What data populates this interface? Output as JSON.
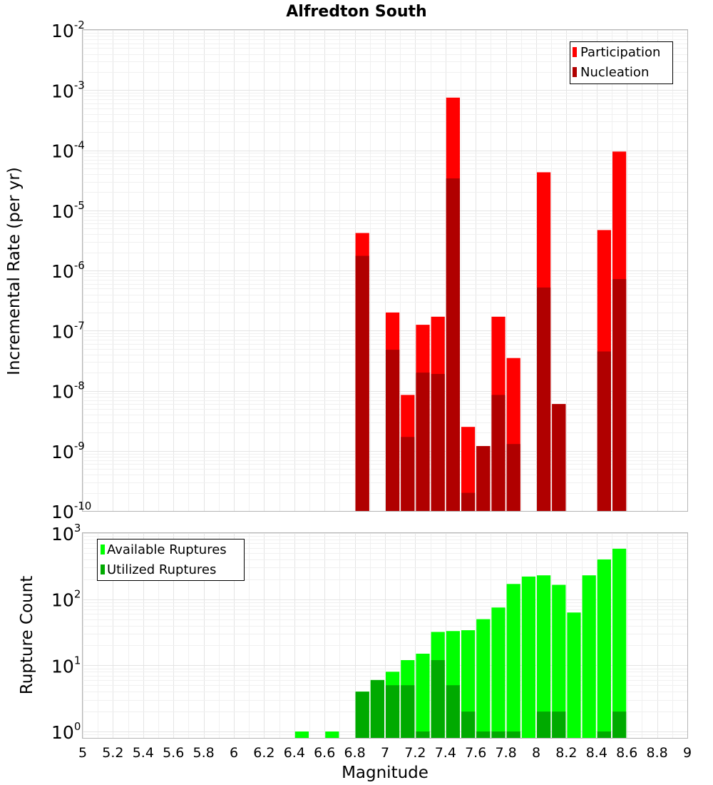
{
  "chart_data": [
    {
      "type": "bar",
      "title": "Alfredton South",
      "ylabel": "Incremental Rate (per yr)",
      "yscale": "log",
      "ylim": [
        1e-10,
        0.01
      ],
      "xlim": [
        5,
        9
      ],
      "grid": true,
      "legend": "top-right",
      "y_ticks": [
        {
          "base": "10",
          "exp": "-10"
        },
        {
          "base": "10",
          "exp": "-9"
        },
        {
          "base": "10",
          "exp": "-8"
        },
        {
          "base": "10",
          "exp": "-7"
        },
        {
          "base": "10",
          "exp": "-6"
        },
        {
          "base": "10",
          "exp": "-5"
        },
        {
          "base": "10",
          "exp": "-4"
        },
        {
          "base": "10",
          "exp": "-3"
        },
        {
          "base": "10",
          "exp": "-2"
        }
      ],
      "series": [
        {
          "name": "Participation",
          "color": "#ff0000",
          "points": [
            [
              6.85,
              4.2e-06
            ],
            [
              7.05,
              2e-07
            ],
            [
              7.15,
              8.5e-09
            ],
            [
              7.25,
              1.25e-07
            ],
            [
              7.35,
              1.7e-07
            ],
            [
              7.45,
              0.00075
            ],
            [
              7.55,
              2.5e-09
            ],
            [
              7.65,
              1.2e-09
            ],
            [
              7.75,
              1.7e-07
            ],
            [
              7.85,
              3.5e-08
            ],
            [
              8.05,
              4.3e-05
            ],
            [
              8.15,
              6e-09
            ],
            [
              8.45,
              4.7e-06
            ],
            [
              8.55,
              9.5e-05
            ]
          ]
        },
        {
          "name": "Nucleation",
          "color": "#b00000",
          "points": [
            [
              6.85,
              1.75e-06
            ],
            [
              7.05,
              4.8e-08
            ],
            [
              7.15,
              1.7e-09
            ],
            [
              7.25,
              2e-08
            ],
            [
              7.35,
              1.9e-08
            ],
            [
              7.45,
              3.4e-05
            ],
            [
              7.55,
              2e-10
            ],
            [
              7.65,
              1.2e-09
            ],
            [
              7.75,
              8.5e-09
            ],
            [
              7.85,
              1.3e-09
            ],
            [
              8.05,
              5.2e-07
            ],
            [
              8.15,
              6e-09
            ],
            [
              8.45,
              4.5e-08
            ],
            [
              8.55,
              7.2e-07
            ]
          ]
        }
      ]
    },
    {
      "type": "bar",
      "xlabel": "Magnitude",
      "ylabel": "Rupture Count",
      "yscale": "log",
      "ylim": [
        0.8,
        1000
      ],
      "xlim": [
        5,
        9
      ],
      "grid": true,
      "legend": "top-left",
      "x_ticks": [
        "5",
        "5.2",
        "5.4",
        "5.6",
        "5.8",
        "6",
        "6.2",
        "6.4",
        "6.6",
        "6.8",
        "7",
        "7.2",
        "7.4",
        "7.6",
        "7.8",
        "8",
        "8.2",
        "8.4",
        "8.6",
        "8.8",
        "9"
      ],
      "y_ticks": [
        {
          "base": "10",
          "exp": "0"
        },
        {
          "base": "10",
          "exp": "1"
        },
        {
          "base": "10",
          "exp": "2"
        },
        {
          "base": "10",
          "exp": "3"
        }
      ],
      "series": [
        {
          "name": "Available Ruptures",
          "color": "#00ff00",
          "points": [
            [
              6.45,
              1
            ],
            [
              6.65,
              1
            ],
            [
              6.85,
              4
            ],
            [
              6.95,
              6
            ],
            [
              7.05,
              8
            ],
            [
              7.15,
              12
            ],
            [
              7.25,
              15
            ],
            [
              7.35,
              32
            ],
            [
              7.45,
              33
            ],
            [
              7.55,
              34
            ],
            [
              7.65,
              50
            ],
            [
              7.75,
              75
            ],
            [
              7.85,
              170
            ],
            [
              7.95,
              220
            ],
            [
              8.05,
              230
            ],
            [
              8.15,
              165
            ],
            [
              8.25,
              63
            ],
            [
              8.35,
              230
            ],
            [
              8.45,
              400
            ],
            [
              8.55,
              580
            ]
          ]
        },
        {
          "name": "Utilized Ruptures",
          "color": "#00aa00",
          "points": [
            [
              6.85,
              4
            ],
            [
              6.95,
              6
            ],
            [
              7.05,
              5
            ],
            [
              7.15,
              5
            ],
            [
              7.25,
              1
            ],
            [
              7.35,
              12
            ],
            [
              7.45,
              5
            ],
            [
              7.55,
              2
            ],
            [
              7.65,
              1
            ],
            [
              7.75,
              1
            ],
            [
              7.85,
              1
            ],
            [
              8.05,
              2
            ],
            [
              8.15,
              2
            ],
            [
              8.45,
              1
            ],
            [
              8.55,
              2
            ]
          ]
        }
      ]
    }
  ]
}
